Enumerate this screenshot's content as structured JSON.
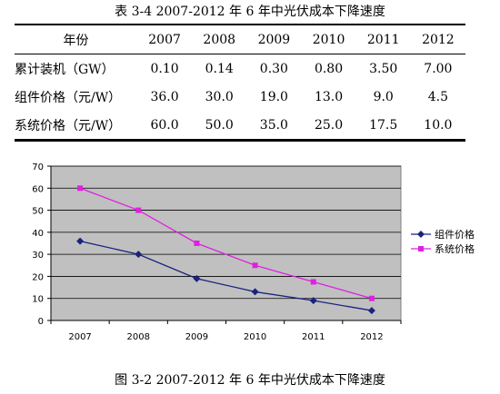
{
  "table": {
    "caption": "表 3-4    2007-2012 年 6 年中光伏成本下降速度",
    "header": [
      "年份",
      "2007",
      "2008",
      "2009",
      "2010",
      "2011",
      "2012"
    ],
    "rows": [
      {
        "label": "累计装机（GW）",
        "values": [
          "0.10",
          "0.14",
          "0.30",
          "0.80",
          "3.50",
          "7.00"
        ]
      },
      {
        "label": "组件价格（元/W）",
        "values": [
          "36.0",
          "30.0",
          "19.0",
          "13.0",
          "9.0",
          "4.5"
        ]
      },
      {
        "label": "系统价格（元/W）",
        "values": [
          "60.0",
          "50.0",
          "35.0",
          "25.0",
          "17.5",
          "10.0"
        ]
      }
    ]
  },
  "chart_data": {
    "type": "line",
    "categories": [
      "2007",
      "2008",
      "2009",
      "2010",
      "2011",
      "2012"
    ],
    "series": [
      {
        "name": "组件价格",
        "values": [
          36,
          30,
          19,
          13,
          9,
          4.5
        ],
        "color": "#1a237e",
        "marker": "diamond"
      },
      {
        "name": "系统价格",
        "values": [
          60,
          50,
          35,
          25,
          17.5,
          10
        ],
        "color": "#e020e0",
        "marker": "square"
      }
    ],
    "ylim": [
      0,
      70
    ],
    "yticks": [
      "0",
      "10",
      "20",
      "30",
      "40",
      "50",
      "60",
      "70"
    ],
    "grid": true,
    "plot_background": "#c0c0c0",
    "legend": "right"
  },
  "figure_caption": "图 3-2    2007-2012 年 6 年中光伏成本下降速度"
}
